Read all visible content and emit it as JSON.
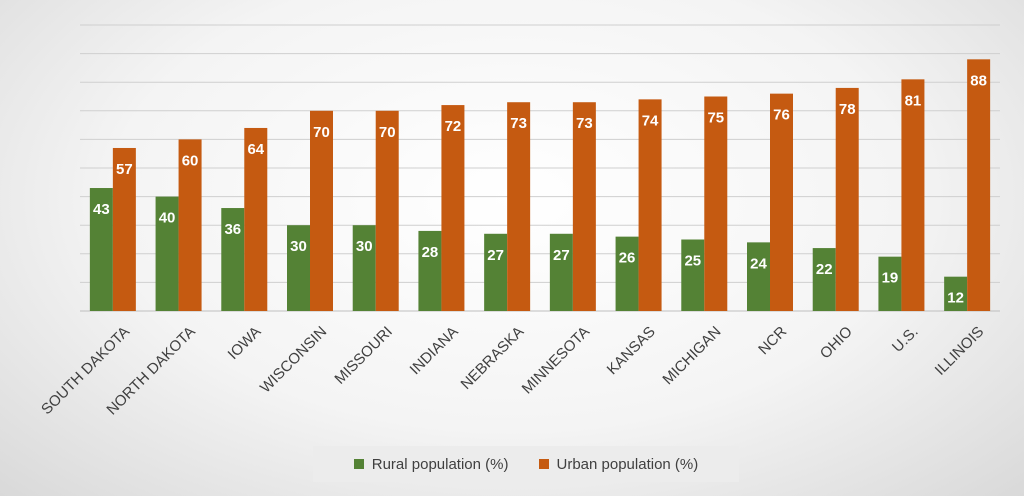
{
  "chart_data": {
    "type": "bar",
    "categories": [
      "SOUTH DAKOTA",
      "NORTH DAKOTA",
      "IOWA",
      "WISCONSIN",
      "MISSOURI",
      "INDIANA",
      "NEBRASKA",
      "MINNESOTA",
      "KANSAS",
      "MICHIGAN",
      "NCR",
      "OHIO",
      "U.S.",
      "ILLINOIS"
    ],
    "series": [
      {
        "name": "Rural population (%)",
        "color": "#548235",
        "values": [
          43,
          40,
          36,
          30,
          30,
          28,
          27,
          27,
          26,
          25,
          24,
          22,
          19,
          12
        ]
      },
      {
        "name": "Urban population (%)",
        "color": "#c55a11",
        "values": [
          57,
          60,
          64,
          70,
          70,
          72,
          73,
          73,
          74,
          75,
          76,
          78,
          81,
          88
        ]
      }
    ],
    "ylim": [
      0,
      100
    ],
    "grid": true,
    "legend_position": "bottom",
    "title": "",
    "xlabel": "",
    "ylabel": ""
  }
}
